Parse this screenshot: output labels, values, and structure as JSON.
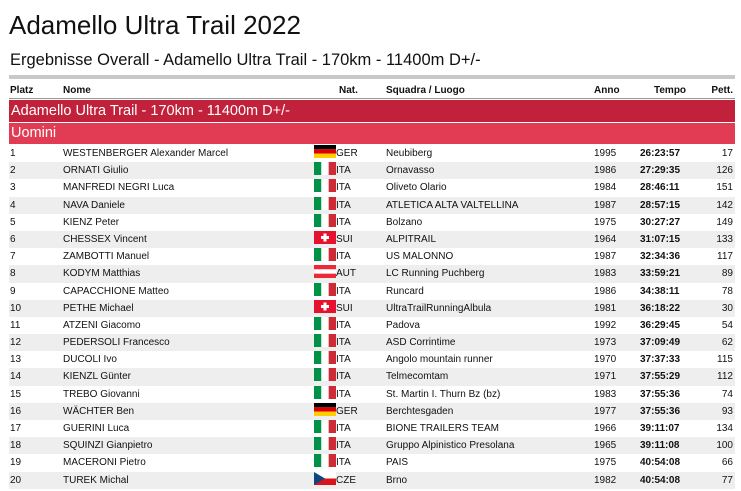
{
  "page": {
    "title": "Adamello Ultra Trail 2022",
    "subtitle": "Ergebnisse Overall - Adamello Ultra Trail - 170km - 11400m D+/-"
  },
  "table": {
    "headers": {
      "rank": "Platz",
      "name": "Nome",
      "nat": "Nat.",
      "team": "Squadra / Luogo",
      "year": "Anno",
      "time": "Tempo",
      "bib": "Pett."
    },
    "race_band": "Adamello Ultra Trail - 170km - 11400m D+/-",
    "category_band": "Uomini",
    "colors": {
      "race_band": "#c1213a",
      "category_band": "#e23c55"
    },
    "rows": [
      {
        "rank": "1",
        "name": "WESTENBERGER Alexander Marcel",
        "flag": "germany-flag",
        "nat": "GER",
        "team": "Neubiberg",
        "year": "1995",
        "time": "26:23:57",
        "bib": "17"
      },
      {
        "rank": "2",
        "name": "ORNATI Giulio",
        "flag": "italy-flag",
        "nat": "ITA",
        "team": "Ornavasso",
        "year": "1986",
        "time": "27:29:35",
        "bib": "126"
      },
      {
        "rank": "3",
        "name": "MANFREDI NEGRI Luca",
        "flag": "italy-flag",
        "nat": "ITA",
        "team": "Oliveto Olario",
        "year": "1984",
        "time": "28:46:11",
        "bib": "151"
      },
      {
        "rank": "4",
        "name": "NAVA Daniele",
        "flag": "italy-flag",
        "nat": "ITA",
        "team": "ATLETICA ALTA VALTELLINA",
        "year": "1987",
        "time": "28:57:15",
        "bib": "142"
      },
      {
        "rank": "5",
        "name": "KIENZ Peter",
        "flag": "italy-flag",
        "nat": "ITA",
        "team": "Bolzano",
        "year": "1975",
        "time": "30:27:27",
        "bib": "149"
      },
      {
        "rank": "6",
        "name": "CHESSEX Vincent",
        "flag": "switzerland-flag",
        "nat": "SUI",
        "team": "ALPITRAIL",
        "year": "1964",
        "time": "31:07:15",
        "bib": "133"
      },
      {
        "rank": "7",
        "name": "ZAMBOTTI Manuel",
        "flag": "italy-flag",
        "nat": "ITA",
        "team": "US MALONNO",
        "year": "1987",
        "time": "32:34:36",
        "bib": "117"
      },
      {
        "rank": "8",
        "name": "KODYM Matthias",
        "flag": "austria-flag",
        "nat": "AUT",
        "team": "LC Running Puchberg",
        "year": "1983",
        "time": "33:59:21",
        "bib": "89"
      },
      {
        "rank": "9",
        "name": "CAPACCHIONE Matteo",
        "flag": "italy-flag",
        "nat": "ITA",
        "team": "Runcard",
        "year": "1986",
        "time": "34:38:11",
        "bib": "78"
      },
      {
        "rank": "10",
        "name": "PETHE Michael",
        "flag": "switzerland-flag",
        "nat": "SUI",
        "team": "UltraTrailRunningAlbula",
        "year": "1981",
        "time": "36:18:22",
        "bib": "30"
      },
      {
        "rank": "11",
        "name": "ATZENI Giacomo",
        "flag": "italy-flag",
        "nat": "ITA",
        "team": "Padova",
        "year": "1992",
        "time": "36:29:45",
        "bib": "54"
      },
      {
        "rank": "12",
        "name": "PEDERSOLI Francesco",
        "flag": "italy-flag",
        "nat": "ITA",
        "team": "ASD Corrintime",
        "year": "1973",
        "time": "37:09:49",
        "bib": "62"
      },
      {
        "rank": "13",
        "name": "DUCOLI Ivo",
        "flag": "italy-flag",
        "nat": "ITA",
        "team": "Angolo mountain runner",
        "year": "1970",
        "time": "37:37:33",
        "bib": "115"
      },
      {
        "rank": "14",
        "name": "KIENZL Günter",
        "flag": "italy-flag",
        "nat": "ITA",
        "team": "Telmecomtam",
        "year": "1971",
        "time": "37:55:29",
        "bib": "112"
      },
      {
        "rank": "15",
        "name": "TREBO Giovanni",
        "flag": "italy-flag",
        "nat": "ITA",
        "team": "St. Martin I. Thurn Bz (bz)",
        "year": "1983",
        "time": "37:55:36",
        "bib": "74"
      },
      {
        "rank": "16",
        "name": "WÄCHTER Ben",
        "flag": "germany-flag",
        "nat": "GER",
        "team": "Berchtesgaden",
        "year": "1977",
        "time": "37:55:36",
        "bib": "93"
      },
      {
        "rank": "17",
        "name": "GUERINI Luca",
        "flag": "italy-flag",
        "nat": "ITA",
        "team": "BIONE TRAILERS TEAM",
        "year": "1966",
        "time": "39:11:07",
        "bib": "134"
      },
      {
        "rank": "18",
        "name": "SQUINZI Gianpietro",
        "flag": "italy-flag",
        "nat": "ITA",
        "team": "Gruppo Alpinistico Presolana",
        "year": "1965",
        "time": "39:11:08",
        "bib": "100"
      },
      {
        "rank": "19",
        "name": "MACERONI Pietro",
        "flag": "italy-flag",
        "nat": "ITA",
        "team": "PAIS",
        "year": "1975",
        "time": "40:54:08",
        "bib": "66"
      },
      {
        "rank": "20",
        "name": "TUREK Michal",
        "flag": "czech-flag",
        "nat": "CZE",
        "team": "Brno",
        "year": "1982",
        "time": "40:54:08",
        "bib": "77"
      }
    ]
  }
}
